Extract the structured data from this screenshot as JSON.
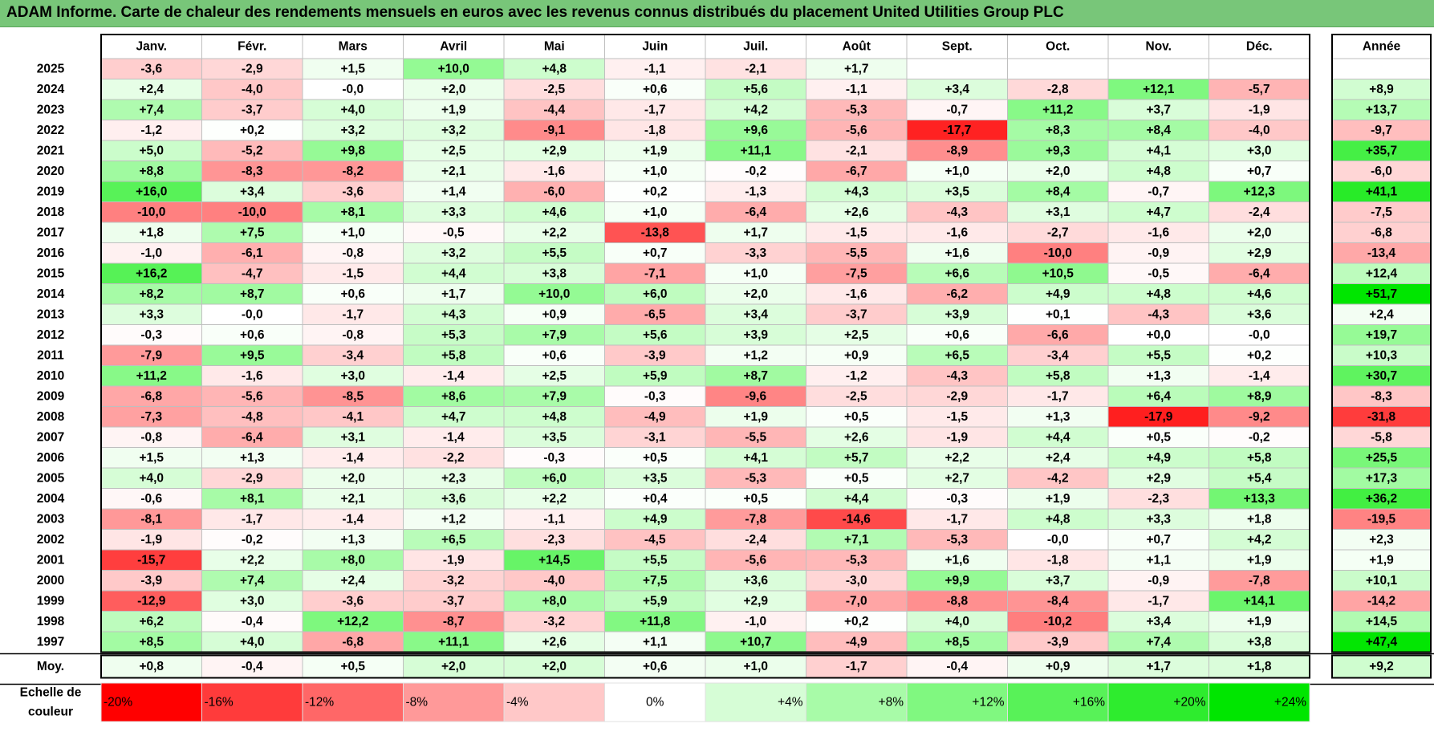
{
  "title": "ADAM Informe. Carte de chaleur des rendements mensuels en euros avec les revenus connus distribués du placement United Utilities Group PLC",
  "chart_data": {
    "type": "heatmap",
    "columns": [
      "Janv.",
      "Févr.",
      "Mars",
      "Avril",
      "Mai",
      "Juin",
      "Juil.",
      "Août",
      "Sept.",
      "Oct.",
      "Nov.",
      "Déc."
    ],
    "year_column_label": "Année",
    "average_row_label": "Moy.",
    "rows": [
      {
        "year": "2025",
        "values": [
          "-3,6",
          "-2,9",
          "+1,5",
          "+10,0",
          "+4,8",
          "-1,1",
          "-2,1",
          "+1,7",
          "",
          "",
          "",
          ""
        ],
        "annual": ""
      },
      {
        "year": "2024",
        "values": [
          "+2,4",
          "-4,0",
          "-0,0",
          "+2,0",
          "-2,5",
          "+0,6",
          "+5,6",
          "-1,1",
          "+3,4",
          "-2,8",
          "+12,1",
          "-5,7"
        ],
        "annual": "+8,9"
      },
      {
        "year": "2023",
        "values": [
          "+7,4",
          "-3,7",
          "+4,0",
          "+1,9",
          "-4,4",
          "-1,7",
          "+4,2",
          "-5,3",
          "-0,7",
          "+11,2",
          "+3,7",
          "-1,9"
        ],
        "annual": "+13,7"
      },
      {
        "year": "2022",
        "values": [
          "-1,2",
          "+0,2",
          "+3,2",
          "+3,2",
          "-9,1",
          "-1,8",
          "+9,6",
          "-5,6",
          "-17,7",
          "+8,3",
          "+8,4",
          "-4,0"
        ],
        "annual": "-9,7"
      },
      {
        "year": "2021",
        "values": [
          "+5,0",
          "-5,2",
          "+9,8",
          "+2,5",
          "+2,9",
          "+1,9",
          "+11,1",
          "-2,1",
          "-8,9",
          "+9,3",
          "+4,1",
          "+3,0"
        ],
        "annual": "+35,7"
      },
      {
        "year": "2020",
        "values": [
          "+8,8",
          "-8,3",
          "-8,2",
          "+2,1",
          "-1,6",
          "+1,0",
          "-0,2",
          "-6,7",
          "+1,0",
          "+2,0",
          "+4,8",
          "+0,7"
        ],
        "annual": "-6,0"
      },
      {
        "year": "2019",
        "values": [
          "+16,0",
          "+3,4",
          "-3,6",
          "+1,4",
          "-6,0",
          "+0,2",
          "-1,3",
          "+4,3",
          "+3,5",
          "+8,4",
          "-0,7",
          "+12,3"
        ],
        "annual": "+41,1"
      },
      {
        "year": "2018",
        "values": [
          "-10,0",
          "-10,0",
          "+8,1",
          "+3,3",
          "+4,6",
          "+1,0",
          "-6,4",
          "+2,6",
          "-4,3",
          "+3,1",
          "+4,7",
          "-2,4"
        ],
        "annual": "-7,5"
      },
      {
        "year": "2017",
        "values": [
          "+1,8",
          "+7,5",
          "+1,0",
          "-0,5",
          "+2,2",
          "-13,8",
          "+1,7",
          "-1,5",
          "-1,6",
          "-2,7",
          "-1,6",
          "+2,0"
        ],
        "annual": "-6,8"
      },
      {
        "year": "2016",
        "values": [
          "-1,0",
          "-6,1",
          "-0,8",
          "+3,2",
          "+5,5",
          "+0,7",
          "-3,3",
          "-5,5",
          "+1,6",
          "-10,0",
          "-0,9",
          "+2,9"
        ],
        "annual": "-13,4"
      },
      {
        "year": "2015",
        "values": [
          "+16,2",
          "-4,7",
          "-1,5",
          "+4,4",
          "+3,8",
          "-7,1",
          "+1,0",
          "-7,5",
          "+6,6",
          "+10,5",
          "-0,5",
          "-6,4"
        ],
        "annual": "+12,4"
      },
      {
        "year": "2014",
        "values": [
          "+8,2",
          "+8,7",
          "+0,6",
          "+1,7",
          "+10,0",
          "+6,0",
          "+2,0",
          "-1,6",
          "-6,2",
          "+4,9",
          "+4,8",
          "+4,6"
        ],
        "annual": "+51,7"
      },
      {
        "year": "2013",
        "values": [
          "+3,3",
          "-0,0",
          "-1,7",
          "+4,3",
          "+0,9",
          "-6,5",
          "+3,4",
          "-3,7",
          "+3,9",
          "+0,1",
          "-4,3",
          "+3,6"
        ],
        "annual": "+2,4"
      },
      {
        "year": "2012",
        "values": [
          "-0,3",
          "+0,6",
          "-0,8",
          "+5,3",
          "+7,9",
          "+5,6",
          "+3,9",
          "+2,5",
          "+0,6",
          "-6,6",
          "+0,0",
          "-0,0"
        ],
        "annual": "+19,7"
      },
      {
        "year": "2011",
        "values": [
          "-7,9",
          "+9,5",
          "-3,4",
          "+5,8",
          "+0,6",
          "-3,9",
          "+1,2",
          "+0,9",
          "+6,5",
          "-3,4",
          "+5,5",
          "+0,2"
        ],
        "annual": "+10,3"
      },
      {
        "year": "2010",
        "values": [
          "+11,2",
          "-1,6",
          "+3,0",
          "-1,4",
          "+2,5",
          "+5,9",
          "+8,7",
          "-1,2",
          "-4,3",
          "+5,8",
          "+1,3",
          "-1,4"
        ],
        "annual": "+30,7"
      },
      {
        "year": "2009",
        "values": [
          "-6,8",
          "-5,6",
          "-8,5",
          "+8,6",
          "+7,9",
          "-0,3",
          "-9,6",
          "-2,5",
          "-2,9",
          "-1,7",
          "+6,4",
          "+8,9"
        ],
        "annual": "-8,3"
      },
      {
        "year": "2008",
        "values": [
          "-7,3",
          "-4,8",
          "-4,1",
          "+4,7",
          "+4,8",
          "-4,9",
          "+1,9",
          "+0,5",
          "-1,5",
          "+1,3",
          "-17,9",
          "-9,2"
        ],
        "annual": "-31,8"
      },
      {
        "year": "2007",
        "values": [
          "-0,8",
          "-6,4",
          "+3,1",
          "-1,4",
          "+3,5",
          "-3,1",
          "-5,5",
          "+2,6",
          "-1,9",
          "+4,4",
          "+0,5",
          "-0,2"
        ],
        "annual": "-5,8"
      },
      {
        "year": "2006",
        "values": [
          "+1,5",
          "+1,3",
          "-1,4",
          "-2,2",
          "-0,3",
          "+0,5",
          "+4,1",
          "+5,7",
          "+2,2",
          "+2,4",
          "+4,9",
          "+5,8"
        ],
        "annual": "+25,5"
      },
      {
        "year": "2005",
        "values": [
          "+4,0",
          "-2,9",
          "+2,0",
          "+2,3",
          "+6,0",
          "+3,5",
          "-5,3",
          "+0,5",
          "+2,7",
          "-4,2",
          "+2,9",
          "+5,4"
        ],
        "annual": "+17,3"
      },
      {
        "year": "2004",
        "values": [
          "-0,6",
          "+8,1",
          "+2,1",
          "+3,6",
          "+2,2",
          "+0,4",
          "+0,5",
          "+4,4",
          "-0,3",
          "+1,9",
          "-2,3",
          "+13,3"
        ],
        "annual": "+36,2"
      },
      {
        "year": "2003",
        "values": [
          "-8,1",
          "-1,7",
          "-1,4",
          "+1,2",
          "-1,1",
          "+4,9",
          "-7,8",
          "-14,6",
          "-1,7",
          "+4,8",
          "+3,3",
          "+1,8"
        ],
        "annual": "-19,5"
      },
      {
        "year": "2002",
        "values": [
          "-1,9",
          "-0,2",
          "+1,3",
          "+6,5",
          "-2,3",
          "-4,5",
          "-2,4",
          "+7,1",
          "-5,3",
          "-0,0",
          "+0,7",
          "+4,2"
        ],
        "annual": "+2,3"
      },
      {
        "year": "2001",
        "values": [
          "-15,7",
          "+2,2",
          "+8,0",
          "-1,9",
          "+14,5",
          "+5,5",
          "-5,6",
          "-5,3",
          "+1,6",
          "-1,8",
          "+1,1",
          "+1,9"
        ],
        "annual": "+1,9"
      },
      {
        "year": "2000",
        "values": [
          "-3,9",
          "+7,4",
          "+2,4",
          "-3,2",
          "-4,0",
          "+7,5",
          "+3,6",
          "-3,0",
          "+9,9",
          "+3,7",
          "-0,9",
          "-7,8"
        ],
        "annual": "+10,1"
      },
      {
        "year": "1999",
        "values": [
          "-12,9",
          "+3,0",
          "-3,6",
          "-3,7",
          "+8,0",
          "+5,9",
          "+2,9",
          "-7,0",
          "-8,8",
          "-8,4",
          "-1,7",
          "+14,1"
        ],
        "annual": "-14,2"
      },
      {
        "year": "1998",
        "values": [
          "+6,2",
          "-0,4",
          "+12,2",
          "-8,7",
          "-3,2",
          "+11,8",
          "-1,0",
          "+0,2",
          "+4,0",
          "-10,2",
          "+3,4",
          "+1,9"
        ],
        "annual": "+14,5"
      },
      {
        "year": "1997",
        "values": [
          "+8,5",
          "+4,0",
          "-6,8",
          "+11,1",
          "+2,6",
          "+1,1",
          "+10,7",
          "-4,9",
          "+8,5",
          "-3,9",
          "+7,4",
          "+3,8"
        ],
        "annual": "+47,4"
      }
    ],
    "average": {
      "values": [
        "+0,8",
        "-0,4",
        "+0,5",
        "+2,0",
        "+2,0",
        "+0,6",
        "+1,0",
        "-1,7",
        "-0,4",
        "+0,9",
        "+1,7",
        "+1,8"
      ],
      "annual": "+9,2"
    },
    "color_scale": {
      "label_line1": "Echelle de",
      "label_line2": "couleur",
      "stops": [
        {
          "value": -20,
          "label": "-20%",
          "color": "#ff0000"
        },
        {
          "value": -16,
          "label": "-16%",
          "color": "#ff3b3b"
        },
        {
          "value": -12,
          "label": "-12%",
          "color": "#ff6767"
        },
        {
          "value": -8,
          "label": "-8%",
          "color": "#ff9999"
        },
        {
          "value": -4,
          "label": "-4%",
          "color": "#ffc8c8"
        },
        {
          "value": 0,
          "label": "0%",
          "color": "#ffffff"
        },
        {
          "value": 4,
          "label": "+4%",
          "color": "#d6fdd6"
        },
        {
          "value": 8,
          "label": "+8%",
          "color": "#a8fba8"
        },
        {
          "value": 12,
          "label": "+12%",
          "color": "#80f880"
        },
        {
          "value": 16,
          "label": "+16%",
          "color": "#58f258"
        },
        {
          "value": 20,
          "label": "+20%",
          "color": "#2eec2e"
        },
        {
          "value": 24,
          "label": "+24%",
          "color": "#00e600"
        }
      ]
    },
    "colors": {
      "title_bar": "#78c679",
      "grid_line": "#bfbfbf",
      "border": "#000000"
    }
  }
}
